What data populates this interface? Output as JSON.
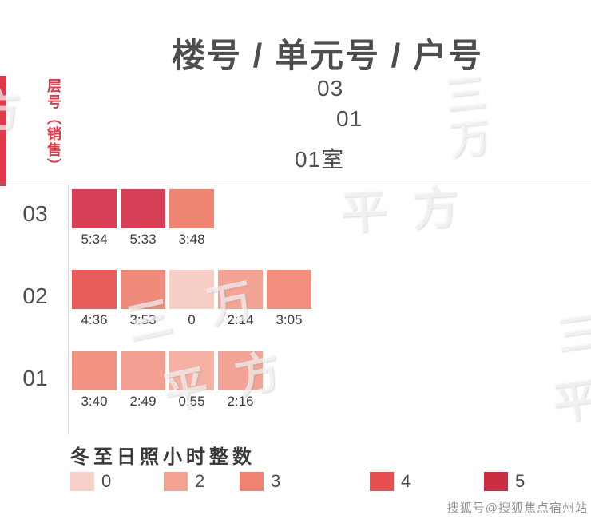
{
  "header": {
    "title": "楼号  /  单元号  /  户号",
    "column_labels": [
      "03",
      "01",
      "01室"
    ]
  },
  "axis": {
    "y_label": "层号（销售）"
  },
  "rows": [
    {
      "floor": "03",
      "cells": [
        {
          "time": "5:34",
          "color": "#d63f55"
        },
        {
          "time": "5:33",
          "color": "#d63f55"
        },
        {
          "time": "3:48",
          "color": "#f08573"
        }
      ]
    },
    {
      "floor": "02",
      "cells": [
        {
          "time": "4:36",
          "color": "#e85d5b"
        },
        {
          "time": "3:53",
          "color": "#f08a7a"
        },
        {
          "time": "0",
          "color": "#f7cfc6"
        },
        {
          "time": "2:14",
          "color": "#f4a495"
        },
        {
          "time": "3:05",
          "color": "#f18e7e"
        }
      ]
    },
    {
      "floor": "01",
      "cells": [
        {
          "time": "3:40",
          "color": "#f19282"
        },
        {
          "time": "2:49",
          "color": "#f3a092"
        },
        {
          "time": "0:55",
          "color": "#f5b2a4"
        },
        {
          "time": "2:16",
          "color": "#f4a496"
        }
      ]
    }
  ],
  "legend": {
    "title": "冬至日照小时整数",
    "items": [
      {
        "label": "0",
        "color": "#f8d2ca"
      },
      {
        "label": "2",
        "color": "#f4a292"
      },
      {
        "label": "3",
        "color": "#ef8270"
      },
      {
        "label": "4",
        "color": "#e64f52"
      },
      {
        "label": "5",
        "color": "#c92e41"
      }
    ]
  },
  "watermarks": [
    "三万",
    "平方",
    "三万",
    "平方",
    "三",
    "平",
    "方"
  ],
  "footer": {
    "credit": "搜狐号@搜狐焦点宿州站"
  },
  "chart_data": {
    "type": "heatmap",
    "title": "楼号 / 单元号 / 户号",
    "column_path": [
      "03",
      "01",
      "01室"
    ],
    "ylabel": "层号（销售）",
    "rows": [
      "03",
      "02",
      "01"
    ],
    "values": [
      [
        "5:34",
        "5:33",
        "3:48"
      ],
      [
        "4:36",
        "3:53",
        "0",
        "2:14",
        "3:05"
      ],
      [
        "3:40",
        "2:49",
        "0:55",
        "2:16"
      ]
    ],
    "values_hours": [
      [
        5.57,
        5.55,
        3.8
      ],
      [
        4.6,
        3.88,
        0,
        2.23,
        3.08
      ],
      [
        3.67,
        2.82,
        0.92,
        2.27
      ]
    ],
    "legend_title": "冬至日照小时整数",
    "legend_levels": [
      0,
      2,
      3,
      4,
      5
    ],
    "legend_colors": [
      "#f8d2ca",
      "#f4a292",
      "#ef8270",
      "#e64f52",
      "#c92e41"
    ],
    "legend_position": "bottom",
    "grid": false
  }
}
